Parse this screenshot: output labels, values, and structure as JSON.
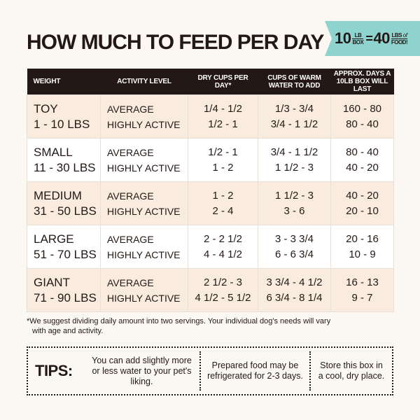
{
  "title": "HOW MUCH TO FEED PER DAY",
  "banner": {
    "left_num": "10",
    "left_top": "LB",
    "left_bottom": "BOX",
    "equals": "=",
    "right_num": "40",
    "right_top": "LBS",
    "right_of": "of",
    "right_bottom": "FOOD!"
  },
  "colors": {
    "header": "#231815",
    "banner": "#8fd3cf",
    "tint_row": "#f9ecdf",
    "background": "#fbf8f3"
  },
  "table": {
    "headers": [
      "WEIGHT",
      "ACTIVITY LEVEL",
      "DRY CUPS PER DAY*",
      "CUPS OF WARM WATER TO ADD",
      "APPROX. DAYS A 10LB BOX WILL LAST"
    ],
    "rows": [
      {
        "size": "TOY",
        "range": "1 - 10 LBS",
        "act1": "AVERAGE",
        "act2": "HIGHLY ACTIVE",
        "dry1": "1/4 - 1/2",
        "dry2": "1/2 - 1",
        "water1": "1/3 - 3/4",
        "water2": "3/4 - 1 1/2",
        "days1": "160 - 80",
        "days2": "80 - 40"
      },
      {
        "size": "SMALL",
        "range": "11 - 30 LBS",
        "act1": "AVERAGE",
        "act2": "HIGHLY ACTIVE",
        "dry1": "1/2 - 1",
        "dry2": "1 - 2",
        "water1": "3/4 - 1 1/2",
        "water2": "1 1/2 - 3",
        "days1": "80 - 40",
        "days2": "40 - 20"
      },
      {
        "size": "MEDIUM",
        "range": "31 - 50 LBS",
        "act1": "AVERAGE",
        "act2": "HIGHLY ACTIVE",
        "dry1": "1 - 2",
        "dry2": "2 - 4",
        "water1": "1 1/2 - 3",
        "water2": "3 - 6",
        "days1": "40 - 20",
        "days2": "20 - 10"
      },
      {
        "size": "LARGE",
        "range": "51 - 70 LBS",
        "act1": "AVERAGE",
        "act2": "HIGHLY ACTIVE",
        "dry1": "2 - 2 1/2",
        "dry2": "4 - 4 1/2",
        "water1": "3 - 3 3/4",
        "water2": "6 - 6 3/4",
        "days1": "20 - 16",
        "days2": "10 - 9"
      },
      {
        "size": "GIANT",
        "range": "71 - 90 LBS",
        "act1": "AVERAGE",
        "act2": "HIGHLY ACTIVE",
        "dry1": "2 1/2 - 3",
        "dry2": "4 1/2 - 5 1/2",
        "water1": "3 3/4 - 4 1/2",
        "water2": "6 3/4 - 8 1/4",
        "days1": "16 - 13",
        "days2": "9 - 7"
      }
    ]
  },
  "note": {
    "line1": "*We suggest dividing daily amount into two servings. Your individual dog's needs will vary",
    "line2": "with age and activity."
  },
  "tips": {
    "heading": "TIPS:",
    "items": [
      "You can add slightly more or less water to your pet's liking.",
      "Prepared food may be refrigerated for 2-3 days.",
      "Store this box in a cool, dry place."
    ]
  }
}
